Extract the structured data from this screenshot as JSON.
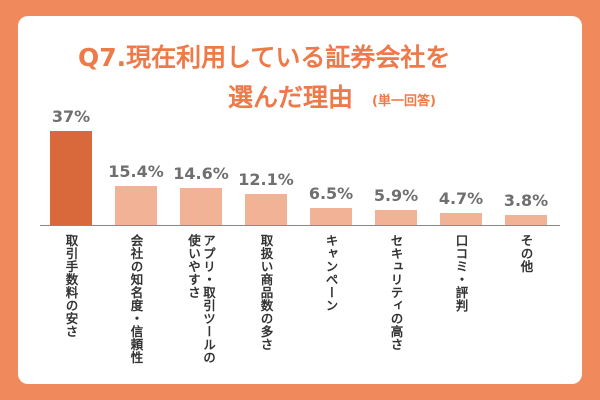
{
  "chart_data": {
    "type": "bar",
    "title": [
      "Q7.現在利用している証券会社を",
      "選んだ理由"
    ],
    "subtitle": "(単一回答)",
    "categories": [
      "取引手数料の安さ",
      "会社の知名度・信頼性",
      "アプリ・取引ツールの使いやすさ",
      "取扱い商品数の多さ",
      "キャンペーン",
      "セキュリティの高さ",
      "口コミ・評判",
      "その他"
    ],
    "values": [
      37,
      15.4,
      14.6,
      12.1,
      6.5,
      5.9,
      4.7,
      3.8
    ],
    "value_labels": [
      "37%",
      "15.4%",
      "14.6%",
      "12.1%",
      "6.5%",
      "5.9%",
      "4.7%",
      "3.8%"
    ],
    "colors": [
      "#d9693a",
      "#f2b296",
      "#f2b296",
      "#f2b296",
      "#f2b296",
      "#f2b296",
      "#f2b296",
      "#f2b296"
    ]
  }
}
